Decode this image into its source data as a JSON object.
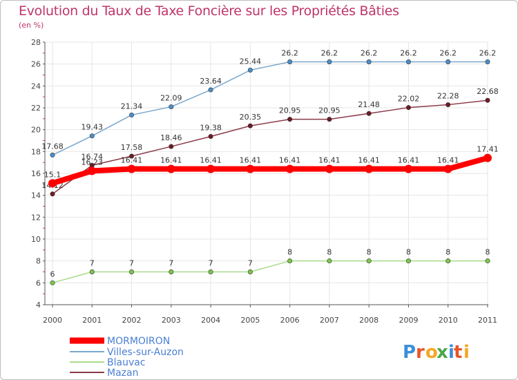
{
  "chart_data": {
    "type": "line",
    "title": "Evolution du Taux de Taxe Foncière sur les Propriétés Bâties",
    "ylabel": "(en %)",
    "xlabel": "",
    "categories": [
      "2000",
      "2001",
      "2002",
      "2003",
      "2004",
      "2005",
      "2006",
      "2007",
      "2008",
      "2009",
      "2010",
      "2011"
    ],
    "ylim": [
      4,
      28
    ],
    "yticks": [
      4,
      6,
      8,
      10,
      12,
      14,
      16,
      18,
      20,
      22,
      24,
      26,
      28
    ],
    "grid": true,
    "series": [
      {
        "name": "Villes-sur-Auzon",
        "color": "#7aa7cc",
        "marker": "#4a8fcc",
        "values": [
          17.68,
          19.43,
          21.34,
          22.09,
          23.64,
          25.44,
          26.2,
          26.2,
          26.2,
          26.2,
          26.2,
          26.2
        ],
        "labels": [
          "17.68",
          "19.43",
          "21.34",
          "22.09",
          "23.64",
          "25.44",
          "26.2",
          "26.2",
          "26.2",
          "26.2",
          "26.2",
          "26.2"
        ]
      },
      {
        "name": "Mazan",
        "color": "#8a3a48",
        "marker": "#6e1a24",
        "values": [
          14.12,
          16.74,
          17.58,
          18.46,
          19.38,
          20.35,
          20.95,
          20.95,
          21.48,
          22.02,
          22.28,
          22.68
        ],
        "labels": [
          "14.12",
          "16.74",
          "17.58",
          "18.46",
          "19.38",
          "20.35",
          "20.95",
          "20.95",
          "21.48",
          "22.02",
          "22.28",
          "22.68"
        ]
      },
      {
        "name": "Blauvac",
        "color": "#a8dc8a",
        "marker": "#7ac84a",
        "values": [
          6,
          7,
          7,
          7,
          7,
          7,
          8,
          8,
          8,
          8,
          8,
          8
        ],
        "labels": [
          "6",
          "7",
          "7",
          "7",
          "7",
          "7",
          "8",
          "8",
          "8",
          "8",
          "8",
          "8"
        ]
      },
      {
        "name": "MORMOIRON",
        "color": "#ff0000",
        "marker": "#ff0000",
        "values": [
          15.1,
          16.23,
          16.41,
          16.41,
          16.41,
          16.41,
          16.41,
          16.41,
          16.41,
          16.41,
          16.41,
          17.41
        ],
        "labels": [
          "15.1",
          "16.23",
          "16.41",
          "16.41",
          "16.41",
          "16.41",
          "16.41",
          "16.41",
          "16.41",
          "16.41",
          "16.41",
          "17.41"
        ]
      }
    ],
    "legend": [
      {
        "name": "MORMOIRON",
        "color": "#ff0000",
        "text_color": "#4a7fd4"
      },
      {
        "name": "Villes-sur-Auzon",
        "color": "#7aa7cc",
        "text_color": "#4a7fd4"
      },
      {
        "name": "Blauvac",
        "color": "#a8dc8a",
        "text_color": "#4a7fd4"
      },
      {
        "name": "Mazan",
        "color": "#8a3a48",
        "text_color": "#4a7fd4"
      }
    ],
    "legend_position": "bottom-left"
  },
  "logo": {
    "text": "Proxiti",
    "letters": [
      "P",
      "r",
      "o",
      "x",
      "i",
      "t",
      "i"
    ],
    "colors": [
      "#3a8fd8",
      "#e8552a",
      "#f5a623",
      "#4aa84a",
      "#3a8fd8",
      "#e8552a",
      "#f5a623"
    ]
  }
}
